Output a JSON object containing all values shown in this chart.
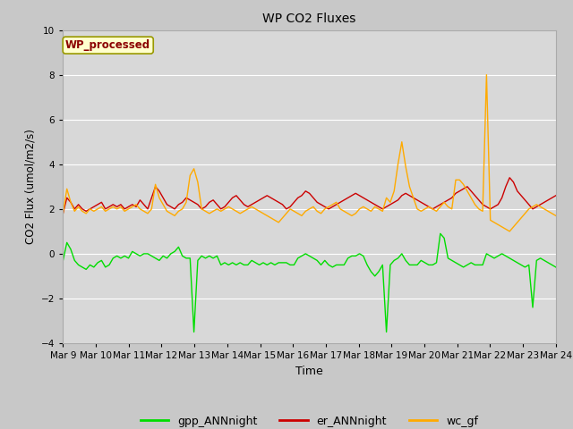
{
  "title": "WP CO2 Fluxes",
  "xlabel": "Time",
  "ylabel": "CO2 Flux (umol/m2/s)",
  "ylim": [
    -4,
    10
  ],
  "yticks": [
    -4,
    -2,
    0,
    2,
    4,
    6,
    8,
    10
  ],
  "xlim_start": 0,
  "xlim_end": 15,
  "xtick_labels": [
    "Mar 9",
    "Mar 10",
    "Mar 11",
    "Mar 12",
    "Mar 13",
    "Mar 14",
    "Mar 15",
    "Mar 16",
    "Mar 17",
    "Mar 18",
    "Mar 19",
    "Mar 20",
    "Mar 21",
    "Mar 22",
    "Mar 23",
    "Mar 24"
  ],
  "annotation_text": "WP_processed",
  "annotation_color": "#8b0000",
  "annotation_bg": "#ffffcc",
  "fig_bg": "#c8c8c8",
  "plot_bg": "#d8d8d8",
  "grid_color": "#ffffff",
  "line_green": "#00dd00",
  "line_red": "#cc0000",
  "line_orange": "#ffaa00",
  "legend_labels": [
    "gpp_ANNnight",
    "er_ANNnight",
    "wc_gf"
  ],
  "linewidth": 1.0,
  "gpp": [
    -0.3,
    0.5,
    0.2,
    -0.3,
    -0.5,
    -0.6,
    -0.7,
    -0.5,
    -0.6,
    -0.4,
    -0.3,
    -0.6,
    -0.5,
    -0.2,
    -0.1,
    -0.2,
    -0.1,
    -0.2,
    0.1,
    0.0,
    -0.1,
    0.0,
    0.0,
    -0.1,
    -0.2,
    -0.3,
    -0.1,
    -0.2,
    0.0,
    0.1,
    0.3,
    -0.1,
    -0.2,
    -0.2,
    -3.5,
    -0.3,
    -0.1,
    -0.2,
    -0.1,
    -0.2,
    -0.1,
    -0.5,
    -0.4,
    -0.5,
    -0.4,
    -0.5,
    -0.4,
    -0.5,
    -0.5,
    -0.3,
    -0.4,
    -0.5,
    -0.4,
    -0.5,
    -0.4,
    -0.5,
    -0.4,
    -0.4,
    -0.4,
    -0.5,
    -0.5,
    -0.2,
    -0.1,
    0.0,
    -0.1,
    -0.2,
    -0.3,
    -0.5,
    -0.3,
    -0.5,
    -0.6,
    -0.5,
    -0.5,
    -0.5,
    -0.2,
    -0.1,
    -0.1,
    0.0,
    -0.1,
    -0.5,
    -0.8,
    -1.0,
    -0.8,
    -0.5,
    -3.5,
    -0.5,
    -0.3,
    -0.2,
    0.0,
    -0.3,
    -0.5,
    -0.5,
    -0.5,
    -0.3,
    -0.4,
    -0.5,
    -0.5,
    -0.4,
    0.9,
    0.7,
    -0.2,
    -0.3,
    -0.4,
    -0.5,
    -0.6,
    -0.5,
    -0.4,
    -0.5,
    -0.5,
    -0.5,
    0.0,
    -0.1,
    -0.2,
    -0.1,
    0.0,
    -0.1,
    -0.2,
    -0.3,
    -0.4,
    -0.5,
    -0.6,
    -0.5,
    -2.4,
    -0.3,
    -0.2,
    -0.3,
    -0.4,
    -0.5,
    -0.6
  ],
  "er": [
    1.8,
    2.5,
    2.3,
    2.0,
    2.2,
    2.0,
    1.9,
    2.0,
    2.1,
    2.2,
    2.3,
    2.0,
    2.1,
    2.2,
    2.1,
    2.2,
    2.0,
    2.1,
    2.2,
    2.1,
    2.4,
    2.2,
    2.0,
    2.5,
    3.0,
    2.8,
    2.5,
    2.2,
    2.1,
    2.0,
    2.2,
    2.3,
    2.5,
    2.4,
    2.3,
    2.2,
    2.0,
    2.1,
    2.3,
    2.4,
    2.2,
    2.0,
    2.1,
    2.3,
    2.5,
    2.6,
    2.4,
    2.2,
    2.1,
    2.2,
    2.3,
    2.4,
    2.5,
    2.6,
    2.5,
    2.4,
    2.3,
    2.2,
    2.0,
    2.1,
    2.3,
    2.5,
    2.6,
    2.8,
    2.7,
    2.5,
    2.3,
    2.2,
    2.1,
    2.0,
    2.1,
    2.2,
    2.3,
    2.4,
    2.5,
    2.6,
    2.7,
    2.6,
    2.5,
    2.4,
    2.3,
    2.2,
    2.1,
    2.0,
    2.1,
    2.2,
    2.3,
    2.4,
    2.6,
    2.7,
    2.6,
    2.5,
    2.4,
    2.3,
    2.2,
    2.1,
    2.0,
    2.1,
    2.2,
    2.3,
    2.4,
    2.5,
    2.7,
    2.8,
    2.9,
    3.0,
    2.8,
    2.6,
    2.4,
    2.2,
    2.1,
    2.0,
    2.1,
    2.2,
    2.5,
    3.0,
    3.4,
    3.2,
    2.8,
    2.6,
    2.4,
    2.2,
    2.0,
    2.1,
    2.2,
    2.3,
    2.4,
    2.5,
    2.6
  ],
  "wc": [
    1.8,
    2.9,
    2.3,
    1.9,
    2.1,
    1.9,
    1.8,
    2.0,
    1.9,
    2.0,
    2.1,
    1.9,
    2.0,
    2.1,
    2.0,
    2.1,
    1.9,
    2.0,
    2.1,
    2.2,
    2.0,
    1.9,
    1.8,
    2.0,
    3.1,
    2.5,
    2.2,
    1.9,
    1.8,
    1.7,
    1.9,
    2.0,
    2.3,
    3.5,
    3.8,
    3.2,
    2.0,
    1.9,
    1.8,
    1.9,
    2.0,
    1.9,
    2.0,
    2.1,
    2.0,
    1.9,
    1.8,
    1.9,
    2.0,
    2.1,
    2.0,
    1.9,
    1.8,
    1.7,
    1.6,
    1.5,
    1.4,
    1.6,
    1.8,
    2.0,
    1.9,
    1.8,
    1.7,
    1.9,
    2.0,
    2.1,
    1.9,
    1.8,
    2.0,
    2.1,
    2.2,
    2.3,
    2.0,
    1.9,
    1.8,
    1.7,
    1.8,
    2.0,
    2.1,
    2.0,
    1.9,
    2.1,
    2.0,
    1.9,
    2.5,
    2.3,
    2.8,
    4.0,
    5.0,
    3.9,
    3.0,
    2.5,
    2.0,
    1.9,
    2.0,
    2.1,
    2.0,
    1.9,
    2.1,
    2.3,
    2.1,
    2.0,
    3.3,
    3.3,
    3.1,
    2.8,
    2.5,
    2.2,
    2.0,
    1.9,
    8.0,
    1.5,
    1.4,
    1.3,
    1.2,
    1.1,
    1.0,
    1.2,
    1.4,
    1.6,
    1.8,
    2.0,
    2.1,
    2.2,
    2.1,
    2.0,
    1.9,
    1.8,
    1.7
  ]
}
